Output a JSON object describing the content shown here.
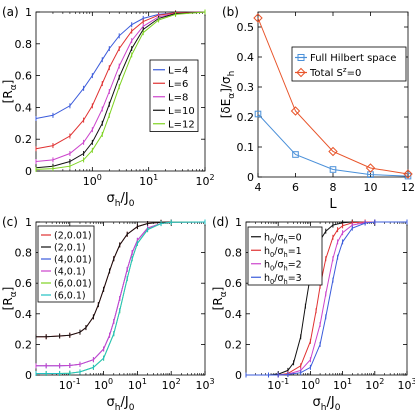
{
  "chart_data": [
    {
      "panel": "(a)",
      "type": "line",
      "ylabel": "[R",
      "ylabel_sub": "α",
      "ylabel_close": "]",
      "xlabel": "σ",
      "xlabel_sub": "h",
      "xlabel_mid": "/J",
      "xlabel_sub2": "0",
      "xscale": "log",
      "xlim": [
        0.1,
        100
      ],
      "ylim": [
        0,
        1
      ],
      "xticks": [
        {
          "v": 1,
          "b": "10",
          "e": "0"
        },
        {
          "v": 10,
          "b": "10",
          "e": "1"
        },
        {
          "v": 100,
          "b": "10",
          "e": "2"
        }
      ],
      "yticks": [
        0,
        0.2,
        0.4,
        0.6,
        0.8,
        1
      ],
      "ytick_labels": [
        "0",
        "0.2",
        "0.4",
        "0.6",
        "0.8",
        "1"
      ],
      "legend_position": "right",
      "series": [
        {
          "name": "L=4",
          "color": "#3b5bdb",
          "x": [
            0.1,
            0.2,
            0.4,
            0.7,
            1,
            1.5,
            2,
            3,
            5,
            8,
            15,
            30,
            100
          ],
          "y": [
            0.33,
            0.35,
            0.41,
            0.52,
            0.6,
            0.7,
            0.77,
            0.85,
            0.92,
            0.96,
            0.985,
            0.995,
            1.0
          ]
        },
        {
          "name": "L=6",
          "color": "#e03131",
          "x": [
            0.1,
            0.2,
            0.4,
            0.7,
            1,
            1.5,
            2,
            3,
            5,
            8,
            15,
            30,
            100
          ],
          "y": [
            0.14,
            0.16,
            0.22,
            0.32,
            0.41,
            0.55,
            0.65,
            0.77,
            0.88,
            0.94,
            0.98,
            0.995,
            1.0
          ]
        },
        {
          "name": "L=8",
          "color": "#cc44cc",
          "x": [
            0.1,
            0.2,
            0.4,
            0.7,
            1,
            1.5,
            2,
            3,
            5,
            8,
            15,
            30,
            100
          ],
          "y": [
            0.06,
            0.07,
            0.11,
            0.18,
            0.26,
            0.39,
            0.5,
            0.66,
            0.82,
            0.91,
            0.97,
            0.99,
            1.0
          ]
        },
        {
          "name": "L=10",
          "color": "#111111",
          "x": [
            0.1,
            0.2,
            0.4,
            0.7,
            1,
            1.5,
            2,
            3,
            5,
            8,
            15,
            30,
            100
          ],
          "y": [
            0.02,
            0.03,
            0.06,
            0.11,
            0.18,
            0.3,
            0.42,
            0.59,
            0.77,
            0.89,
            0.96,
            0.99,
            1.0
          ]
        },
        {
          "name": "L=12",
          "color": "#7ed321",
          "x": [
            0.1,
            0.2,
            0.4,
            0.7,
            1,
            1.5,
            2,
            3,
            5,
            8,
            15,
            30,
            100
          ],
          "y": [
            0.01,
            0.015,
            0.03,
            0.07,
            0.13,
            0.23,
            0.35,
            0.53,
            0.73,
            0.87,
            0.95,
            0.985,
            1.0
          ]
        }
      ]
    },
    {
      "panel": "(b)",
      "type": "line",
      "ylabel": "[δE",
      "ylabel_sub": "α",
      "ylabel_close": "]/σ",
      "ylabel_sub2": "h",
      "xlabel": "L",
      "xscale": "linear",
      "xlim": [
        4,
        12
      ],
      "ylim": [
        0,
        0.55
      ],
      "xticks": [
        4,
        6,
        8,
        10,
        12
      ],
      "yticks": [
        0,
        0.1,
        0.2,
        0.3,
        0.4,
        0.5
      ],
      "ytick_labels": [
        "0",
        "0.1",
        "0.2",
        "0.3",
        "0.4",
        "0.5"
      ],
      "legend_position": "top-right",
      "series": [
        {
          "name": "Full Hilbert space",
          "color": "#4a90d9",
          "marker": "square",
          "x": [
            4,
            6,
            8,
            10,
            12
          ],
          "y": [
            0.21,
            0.075,
            0.025,
            0.008,
            0.003
          ]
        },
        {
          "name": "Total S",
          "name_sup": "z",
          "name_tail": "=0",
          "color": "#e8542a",
          "marker": "diamond",
          "x": [
            4,
            6,
            8,
            10,
            12
          ],
          "y": [
            0.53,
            0.22,
            0.085,
            0.03,
            0.01
          ]
        }
      ]
    },
    {
      "panel": "(c)",
      "type": "line",
      "ylabel": "[R",
      "ylabel_sub": "α",
      "ylabel_close": "]",
      "xlabel": "σ",
      "xlabel_sub": "h",
      "xlabel_mid": "/J",
      "xlabel_sub2": "0",
      "xscale": "log",
      "xlim": [
        0.01,
        1000
      ],
      "ylim": [
        0,
        1
      ],
      "xticks": [
        {
          "v": 0.1,
          "b": "10",
          "e": "-1"
        },
        {
          "v": 1,
          "b": "10",
          "e": "0"
        },
        {
          "v": 10,
          "b": "10",
          "e": "1"
        },
        {
          "v": 100,
          "b": "10",
          "e": "2"
        },
        {
          "v": 1000,
          "b": "10",
          "e": "3"
        }
      ],
      "yticks": [
        0,
        0.2,
        0.4,
        0.6,
        0.8,
        1
      ],
      "ytick_labels": [
        "0",
        "0.2",
        "0.4",
        "0.6",
        "0.8",
        "1"
      ],
      "legend_position": "top-left",
      "series": [
        {
          "name": "(2,0.01)",
          "color": "#e03131",
          "x": [
            0.01,
            0.02,
            0.05,
            0.1,
            0.2,
            0.3,
            0.5,
            0.7,
            1,
            1.5,
            2,
            3,
            5,
            10,
            20,
            50,
            100,
            1000
          ],
          "y": [
            0.25,
            0.25,
            0.255,
            0.26,
            0.28,
            0.31,
            0.38,
            0.46,
            0.56,
            0.68,
            0.76,
            0.85,
            0.92,
            0.97,
            0.99,
            0.998,
            1.0,
            1.0
          ]
        },
        {
          "name": "(2,0.1)",
          "color": "#111111",
          "x": [
            0.01,
            0.02,
            0.05,
            0.1,
            0.2,
            0.3,
            0.5,
            0.7,
            1,
            1.5,
            2,
            3,
            5,
            10,
            20,
            50,
            100,
            1000
          ],
          "y": [
            0.25,
            0.25,
            0.255,
            0.26,
            0.28,
            0.31,
            0.38,
            0.46,
            0.56,
            0.68,
            0.76,
            0.85,
            0.92,
            0.97,
            0.99,
            0.998,
            1.0,
            1.0
          ]
        },
        {
          "name": "(4,0.01)",
          "color": "#3b5bdb",
          "x": [
            0.01,
            0.02,
            0.05,
            0.1,
            0.2,
            0.5,
            1,
            1.5,
            2,
            3,
            5,
            7,
            10,
            20,
            50,
            100,
            1000
          ],
          "y": [
            0.06,
            0.06,
            0.06,
            0.062,
            0.07,
            0.1,
            0.17,
            0.26,
            0.35,
            0.5,
            0.69,
            0.8,
            0.88,
            0.96,
            0.99,
            0.998,
            1.0
          ]
        },
        {
          "name": "(4,0.1)",
          "color": "#cc44cc",
          "x": [
            0.01,
            0.02,
            0.05,
            0.1,
            0.2,
            0.5,
            1,
            1.5,
            2,
            3,
            5,
            7,
            10,
            20,
            50,
            100,
            1000
          ],
          "y": [
            0.06,
            0.06,
            0.06,
            0.062,
            0.07,
            0.1,
            0.17,
            0.26,
            0.35,
            0.5,
            0.69,
            0.8,
            0.88,
            0.96,
            0.99,
            0.998,
            1.0
          ]
        },
        {
          "name": "(6,0.01)",
          "color": "#7ed321",
          "x": [
            0.01,
            0.02,
            0.05,
            0.1,
            0.2,
            0.5,
            1,
            2,
            3,
            5,
            7,
            10,
            20,
            50,
            100,
            1000
          ],
          "y": [
            0.01,
            0.01,
            0.01,
            0.012,
            0.02,
            0.05,
            0.11,
            0.27,
            0.42,
            0.63,
            0.76,
            0.86,
            0.95,
            0.99,
            0.998,
            1.0
          ]
        },
        {
          "name": "(6,0.1)",
          "color": "#22c1c3",
          "x": [
            0.01,
            0.02,
            0.05,
            0.1,
            0.2,
            0.5,
            1,
            2,
            3,
            5,
            7,
            10,
            20,
            50,
            100,
            1000
          ],
          "y": [
            0.01,
            0.01,
            0.01,
            0.012,
            0.02,
            0.05,
            0.11,
            0.27,
            0.42,
            0.63,
            0.76,
            0.86,
            0.95,
            0.99,
            0.998,
            1.0
          ]
        }
      ]
    },
    {
      "panel": "(d)",
      "type": "line",
      "ylabel": "[R",
      "ylabel_sub": "α",
      "ylabel_close": "]",
      "xlabel": "σ",
      "xlabel_sub": "h",
      "xlabel_mid": "/J",
      "xlabel_sub2": "0",
      "xscale": "log",
      "xlim": [
        0.01,
        1000
      ],
      "ylim": [
        0,
        1
      ],
      "xticks": [
        {
          "v": 0.1,
          "b": "10",
          "e": "-1"
        },
        {
          "v": 1,
          "b": "10",
          "e": "0"
        },
        {
          "v": 10,
          "b": "10",
          "e": "1"
        },
        {
          "v": 100,
          "b": "10",
          "e": "2"
        },
        {
          "v": 1000,
          "b": "10",
          "e": "3"
        }
      ],
      "yticks": [
        0,
        0.2,
        0.4,
        0.6,
        0.8,
        1
      ],
      "ytick_labels": [
        "0",
        "0.2",
        "0.4",
        "0.6",
        "0.8",
        "1"
      ],
      "legend_position": "top-left",
      "series": [
        {
          "name": "h",
          "name_sub": "0",
          "name_mid": "/σ",
          "name_sub2": "h",
          "name_tail": "=0",
          "color": "#111111",
          "x": [
            0.01,
            0.05,
            0.1,
            0.2,
            0.3,
            0.5,
            0.7,
            1,
            1.5,
            2,
            3,
            5,
            10,
            20,
            100,
            1000
          ],
          "y": [
            0.0,
            0.0,
            0.005,
            0.03,
            0.08,
            0.25,
            0.45,
            0.65,
            0.8,
            0.88,
            0.94,
            0.98,
            0.995,
            1.0,
            1.0,
            1.0
          ]
        },
        {
          "name": "h",
          "name_sub": "0",
          "name_mid": "/σ",
          "name_sub2": "h",
          "name_tail": "=1",
          "color": "#e03131",
          "x": [
            0.01,
            0.05,
            0.1,
            0.2,
            0.5,
            1,
            1.5,
            2,
            3,
            5,
            7,
            10,
            20,
            50,
            100,
            1000
          ],
          "y": [
            0.0,
            0.0,
            0.0,
            0.01,
            0.06,
            0.22,
            0.42,
            0.58,
            0.76,
            0.9,
            0.95,
            0.975,
            0.995,
            1.0,
            1.0,
            1.0
          ]
        },
        {
          "name": "h",
          "name_sub": "0",
          "name_mid": "/σ",
          "name_sub2": "h",
          "name_tail": "=2",
          "color": "#cc44cc",
          "x": [
            0.01,
            0.05,
            0.1,
            0.2,
            0.5,
            1,
            2,
            3,
            5,
            7,
            10,
            20,
            50,
            100,
            1000
          ],
          "y": [
            0.0,
            0.0,
            0.0,
            0.005,
            0.03,
            0.1,
            0.33,
            0.53,
            0.76,
            0.87,
            0.93,
            0.98,
            0.997,
            1.0,
            1.0
          ]
        },
        {
          "name": "h",
          "name_sub": "0",
          "name_mid": "/σ",
          "name_sub2": "h",
          "name_tail": "=3",
          "color": "#3b5bdb",
          "x": [
            0.01,
            0.05,
            0.1,
            0.2,
            0.5,
            1,
            2,
            3,
            5,
            7,
            10,
            20,
            50,
            100,
            1000
          ],
          "y": [
            0.0,
            0.0,
            0.0,
            0.003,
            0.015,
            0.05,
            0.2,
            0.38,
            0.62,
            0.77,
            0.87,
            0.96,
            0.993,
            1.0,
            1.0
          ]
        }
      ]
    }
  ]
}
